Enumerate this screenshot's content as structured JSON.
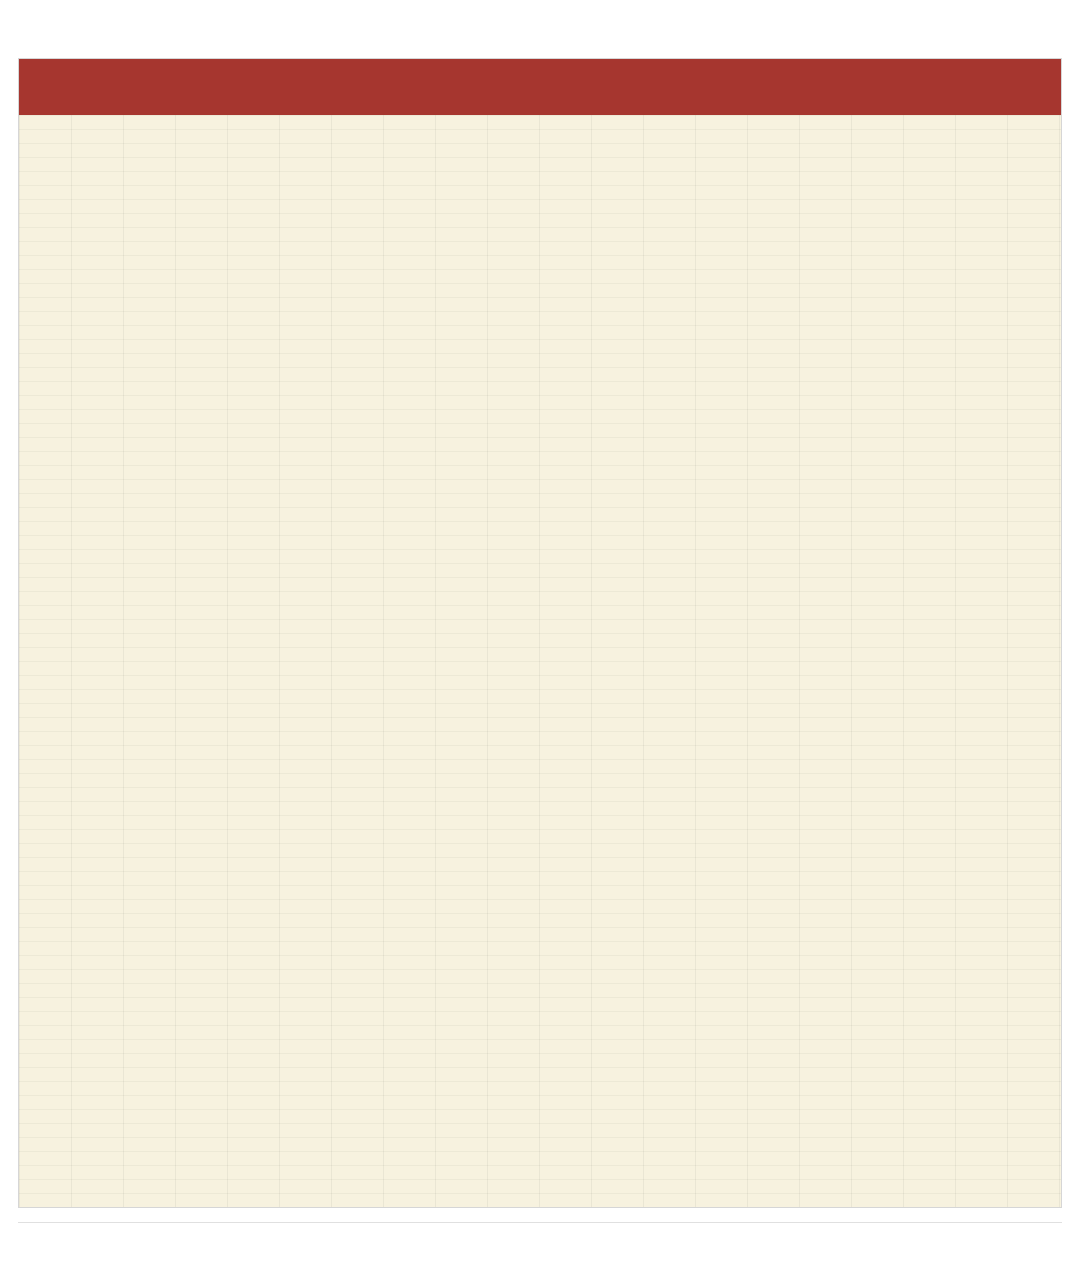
{
  "page": {
    "title": "",
    "footnote": "",
    "source": ""
  },
  "colors": {
    "header_bg": "#a6362f",
    "grid_bg": "#f7f2df",
    "border": "#d6d6d6"
  },
  "chart_data": {
    "type": "table",
    "title": "",
    "columns": [],
    "rows": []
  }
}
